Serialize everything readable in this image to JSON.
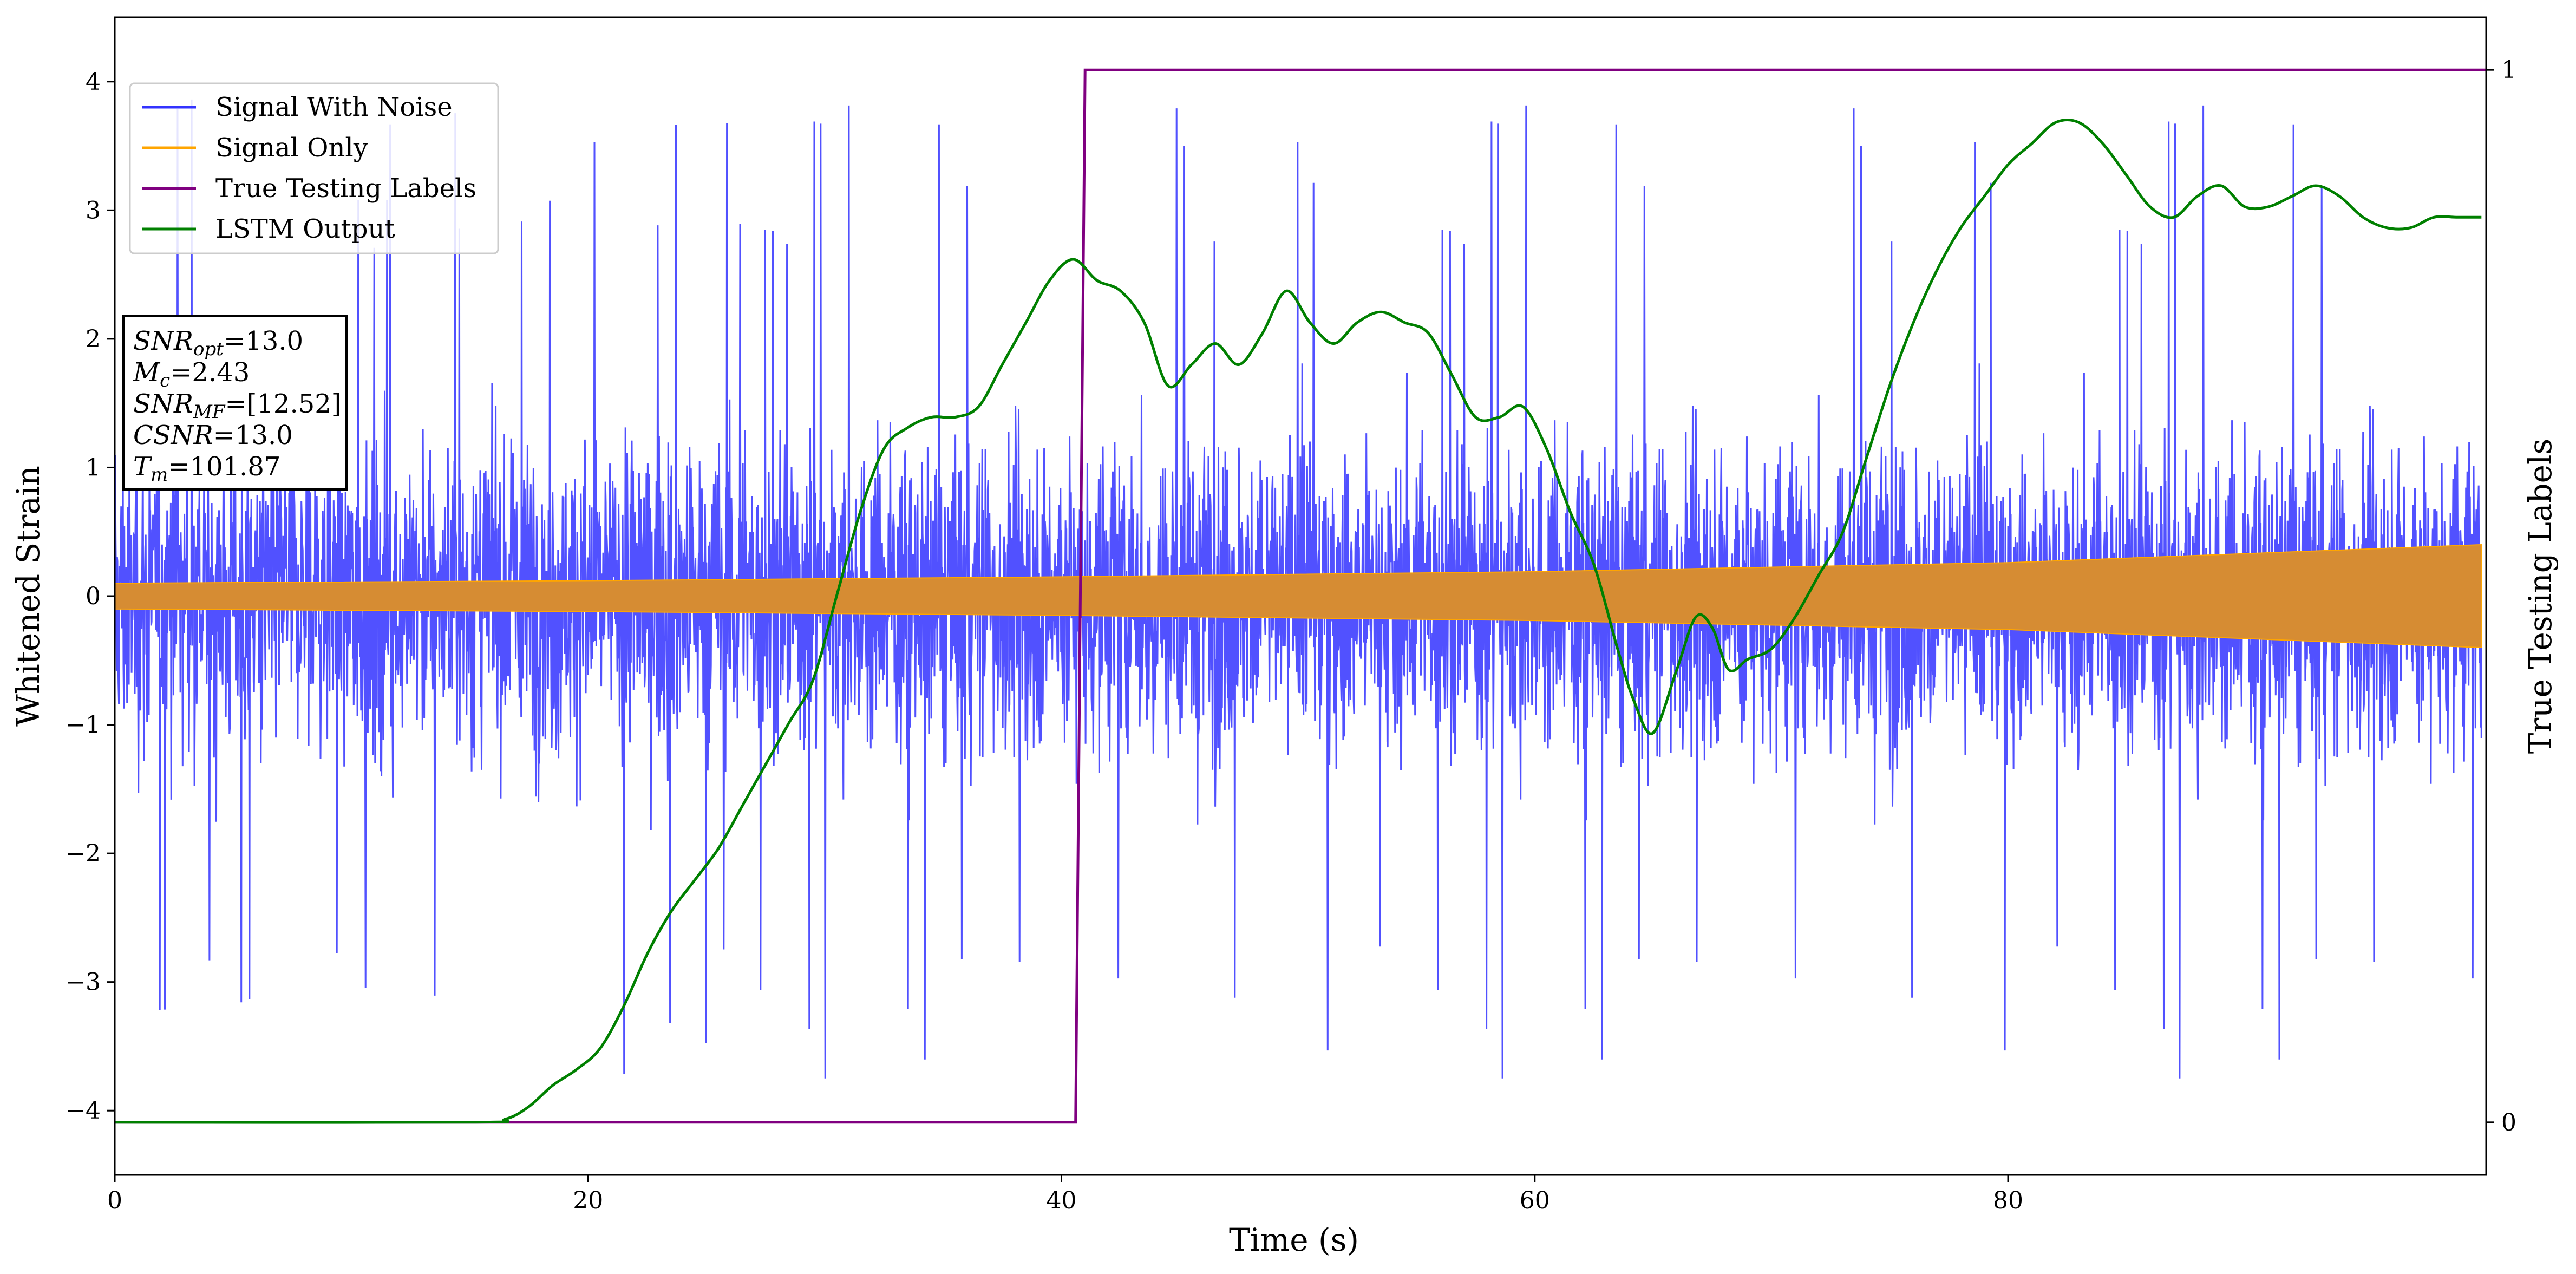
{
  "chart_data": {
    "type": "line",
    "xlabel": "Time (s)",
    "ylabel": "Whitened Strain",
    "y2label": "True Testing Labels",
    "xlim": [
      0,
      100.2
    ],
    "ylim": [
      -4.5,
      4.5
    ],
    "y2lim": [
      -0.05,
      1.05
    ],
    "x_ticks": [
      0,
      20,
      40,
      60,
      80
    ],
    "y_ticks": [
      -4,
      -3,
      -2,
      -1,
      0,
      1,
      2,
      3,
      4
    ],
    "y2_ticks": [
      0,
      1
    ],
    "x_tick_labels": [
      "0",
      "20",
      "40",
      "60",
      "80"
    ],
    "y_tick_labels": [
      "−4",
      "−3",
      "−2",
      "−1",
      "0",
      "1",
      "2",
      "3",
      "4"
    ],
    "y2_tick_labels": [
      "0",
      "1"
    ],
    "grid": false,
    "legend_position": "top-left",
    "series": [
      {
        "name": "Signal With Noise",
        "color": "#3333ff",
        "axis": "left",
        "description_values": {
          "band_upper_approx": 2.3,
          "band_lower_approx": -2.3,
          "max": 4.05,
          "min": -3.75
        }
      },
      {
        "name": "Signal Only",
        "color": "#ffa500",
        "axis": "left",
        "x": [
          0,
          20,
          40,
          60,
          80,
          100
        ],
        "upper": [
          0.1,
          0.12,
          0.15,
          0.19,
          0.26,
          0.4
        ],
        "lower": [
          -0.1,
          -0.12,
          -0.15,
          -0.19,
          -0.26,
          -0.4
        ]
      },
      {
        "name": "True Testing Labels",
        "color": "#800080",
        "axis": "right",
        "x": [
          0,
          40.6,
          41.0,
          100.2
        ],
        "y": [
          0,
          0,
          1,
          1
        ]
      },
      {
        "name": "LSTM Output",
        "color": "#008000",
        "axis": "right",
        "x": [
          0,
          15,
          16.5,
          17.5,
          18.5,
          19.5,
          20.5,
          21.5,
          22.5,
          23.5,
          24.5,
          25.5,
          26.5,
          27.5,
          28.5,
          29.5,
          30.5,
          31.5,
          32.5,
          33.5,
          34.5,
          35.5,
          36.5,
          37.5,
          38.5,
          39.5,
          40.5,
          41.5,
          42.5,
          43.5,
          44.5,
          45.5,
          46.5,
          47.5,
          48.5,
          49.5,
          50.5,
          51.5,
          52.5,
          53.5,
          54.5,
          55.5,
          56.5,
          57.5,
          58.5,
          59.5,
          60.5,
          61.5,
          62.5,
          63.5,
          64.2,
          65,
          66,
          66.8,
          67.5,
          68.2,
          69,
          70,
          71,
          72,
          73,
          74,
          75,
          76,
          77,
          78,
          79,
          80,
          81,
          82,
          83,
          84,
          85,
          86,
          87,
          88,
          89,
          90,
          91,
          92,
          93,
          94,
          95,
          96,
          97,
          98,
          99,
          100
        ],
        "y": [
          0,
          0,
          0.003,
          0.015,
          0.035,
          0.05,
          0.07,
          0.11,
          0.16,
          0.2,
          0.23,
          0.26,
          0.3,
          0.34,
          0.38,
          0.42,
          0.5,
          0.58,
          0.64,
          0.66,
          0.67,
          0.67,
          0.68,
          0.72,
          0.76,
          0.8,
          0.82,
          0.8,
          0.79,
          0.76,
          0.7,
          0.72,
          0.74,
          0.72,
          0.75,
          0.79,
          0.76,
          0.74,
          0.76,
          0.77,
          0.76,
          0.75,
          0.71,
          0.67,
          0.67,
          0.68,
          0.64,
          0.58,
          0.53,
          0.45,
          0.4,
          0.37,
          0.43,
          0.48,
          0.47,
          0.43,
          0.44,
          0.45,
          0.48,
          0.52,
          0.56,
          0.63,
          0.7,
          0.76,
          0.81,
          0.85,
          0.88,
          0.91,
          0.93,
          0.95,
          0.95,
          0.93,
          0.9,
          0.87,
          0.86,
          0.88,
          0.89,
          0.87,
          0.87,
          0.88,
          0.89,
          0.88,
          0.86,
          0.85,
          0.85,
          0.86,
          0.86,
          0.86
        ]
      }
    ],
    "annotation": {
      "lines": [
        {
          "var": "SNR",
          "sub": "opt",
          "value": "=13.0"
        },
        {
          "var": "M",
          "sub": "c",
          "value": "=2.43"
        },
        {
          "var": "SNR",
          "sub": "MF",
          "value": "=[12.52]"
        },
        {
          "var": "CSNR",
          "sub": "",
          "value": "=13.0"
        },
        {
          "var": "T",
          "sub": "m",
          "value": "=101.87"
        }
      ]
    }
  }
}
